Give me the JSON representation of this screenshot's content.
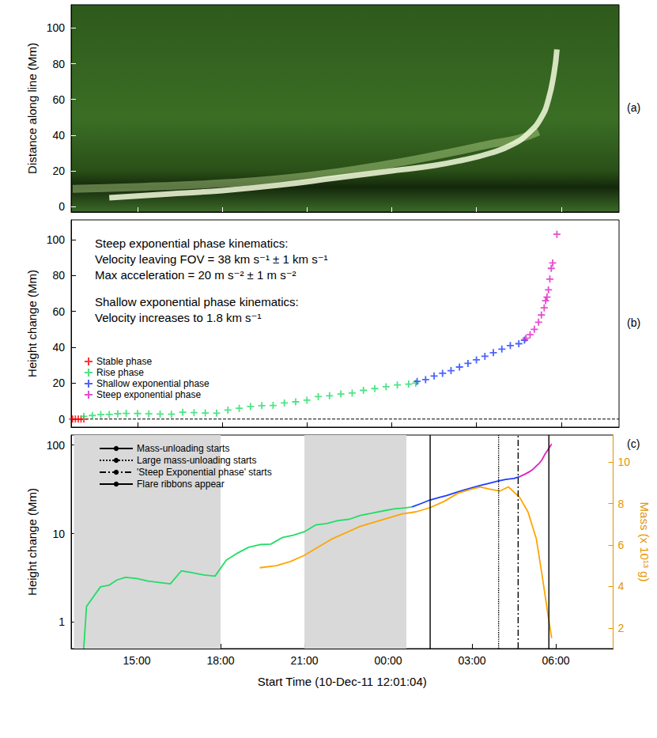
{
  "chart_data": [
    {
      "type": "line",
      "panel_label": "(a)",
      "ylabel": "Distance along line (Mm)",
      "tick_labels": "y",
      "xlim": [
        12.65,
        32.05
      ],
      "xticks": [
        {
          "value": 15,
          "label": "15:00"
        },
        {
          "value": 18,
          "label": "18:00"
        },
        {
          "value": 21,
          "label": "21:00"
        },
        {
          "value": 24,
          "label": "00:00"
        },
        {
          "value": 27,
          "label": "03:00"
        },
        {
          "value": 30,
          "label": "06:00"
        }
      ],
      "ylim": [
        -3,
        113
      ],
      "yticks": [
        0,
        20,
        40,
        60,
        80,
        100
      ],
      "series": [
        {
          "color": "#f2fadc",
          "x": [
            14.0,
            16.0,
            18.0,
            20.0,
            22.0,
            24.0,
            25.5,
            26.5,
            27.5,
            28.3,
            28.9,
            29.3,
            29.55,
            29.75,
            29.85
          ],
          "values": [
            5,
            7,
            9,
            12,
            16,
            20,
            23,
            26,
            30,
            35,
            42,
            50,
            60,
            75,
            88
          ]
        },
        {
          "color": "#b9d98c",
          "x": [
            12.7,
            15.0,
            18.0,
            21.0,
            24.0,
            26.0,
            27.5,
            28.5,
            29.2
          ],
          "values": [
            10,
            11,
            13,
            17,
            24,
            30,
            35,
            38,
            42
          ]
        }
      ]
    },
    {
      "type": "scatter",
      "panel_label": "(b)",
      "ylabel": "Height change (Mm)",
      "tick_labels": "y",
      "legend": "lower left",
      "xlim": [
        12.65,
        32.05
      ],
      "xticks": [
        {
          "value": 15,
          "label": "15:00"
        },
        {
          "value": 18,
          "label": "18:00"
        },
        {
          "value": 21,
          "label": "21:00"
        },
        {
          "value": 24,
          "label": "00:00"
        },
        {
          "value": 27,
          "label": "03:00"
        },
        {
          "value": 30,
          "label": "06:00"
        }
      ],
      "ylim": [
        -4.5,
        111
      ],
      "yticks": [
        0,
        20,
        40,
        60,
        80,
        100
      ],
      "reference_line": {
        "y": 0,
        "line_style": "dashed"
      },
      "annotations": [
        [
          "Steep exponential phase kinematics:",
          "Velocity leaving FOV = 38 km s⁻¹ ± 1 km s⁻¹",
          "Max acceleration = 20 m s⁻² ± 1 m s⁻²"
        ],
        [
          "Shallow exponential phase kinematics:",
          "Velocity increases to 1.8 km s⁻¹"
        ]
      ],
      "series": [
        {
          "name": "Stable phase",
          "color": "#ff0000",
          "marker": "plus",
          "x": [
            12.7,
            12.8,
            12.9,
            13.0,
            13.1
          ],
          "values": [
            0,
            0,
            0,
            0,
            0
          ]
        },
        {
          "name": "Rise phase",
          "color": "#22dd66",
          "marker": "plus",
          "x": [
            13.1,
            13.4,
            13.7,
            14.0,
            14.3,
            14.6,
            15.0,
            15.4,
            15.8,
            16.2,
            16.6,
            17.0,
            17.4,
            17.8,
            18.2,
            18.6,
            19.0,
            19.4,
            19.8,
            20.2,
            20.6,
            21.0,
            21.4,
            21.8,
            22.2,
            22.6,
            23.0,
            23.4,
            23.8,
            24.2,
            24.6,
            24.85
          ],
          "values": [
            1.5,
            2,
            2.5,
            2.6,
            3,
            3.2,
            3.1,
            2.9,
            2.8,
            2.7,
            3.8,
            3.6,
            3.4,
            3.3,
            5,
            6,
            7,
            7.5,
            7.6,
            9,
            9.6,
            10.5,
            12.5,
            13,
            14,
            14.5,
            16,
            17,
            18,
            19,
            19.5,
            20
          ]
        },
        {
          "name": "Shallow exponential phase",
          "color": "#1f3cff",
          "marker": "plus",
          "x": [
            24.9,
            25.2,
            25.5,
            25.8,
            26.1,
            26.4,
            26.7,
            27.0,
            27.3,
            27.6,
            27.9,
            28.2,
            28.5,
            28.7
          ],
          "values": [
            21,
            22,
            24,
            25.5,
            27,
            29,
            31,
            33,
            35,
            37,
            39,
            41,
            42,
            44
          ]
        },
        {
          "name": "Steep exponential phase",
          "color": "#e020c0",
          "marker": "plus",
          "x": [
            28.75,
            28.9,
            29.05,
            29.2,
            29.3,
            29.4,
            29.45,
            29.5,
            29.55,
            29.6,
            29.65,
            29.7,
            29.85
          ],
          "values": [
            45,
            47,
            50,
            54,
            58,
            62,
            66,
            68,
            72,
            78,
            84,
            87,
            103
          ]
        }
      ]
    },
    {
      "type": "line",
      "panel_label": "(c)",
      "log": "y",
      "legend": "upper left",
      "xlabel": "Start Time (10-Dec-11 12:01:04)",
      "ylabel": "Height change (Mm)",
      "y2label": "Mass (x 10¹³ g)",
      "xlim": [
        12.65,
        32.05
      ],
      "xticks": [
        {
          "value": 15,
          "label": "15:00"
        },
        {
          "value": 18,
          "label": "18:00"
        },
        {
          "value": 21,
          "label": "21:00"
        },
        {
          "value": 24,
          "label": "00:00"
        },
        {
          "value": 27,
          "label": "03:00"
        },
        {
          "value": 30,
          "label": "06:00"
        }
      ],
      "ylim": [
        0.5,
        130
      ],
      "yticks": [
        1,
        10,
        100
      ],
      "y2lim": [
        1,
        11.3
      ],
      "y2ticks": [
        2,
        4,
        6,
        8,
        10
      ],
      "shaded": [
        [
          12.75,
          18.0
        ],
        [
          21.0,
          24.65
        ]
      ],
      "series": [
        {
          "color": "#22dd66",
          "x": [
            13.1,
            13.2,
            13.7,
            14.0,
            14.3,
            14.6,
            15.0,
            15.4,
            15.8,
            16.2,
            16.6,
            17.0,
            17.4,
            17.8,
            18.2,
            18.6,
            19.0,
            19.4,
            19.8,
            20.2,
            20.6,
            21.0,
            21.4,
            21.8,
            22.2,
            22.6,
            23.0,
            23.4,
            23.8,
            24.2,
            24.6,
            24.85
          ],
          "values": [
            0.5,
            1.5,
            2.5,
            2.6,
            3,
            3.2,
            3.1,
            2.9,
            2.8,
            2.7,
            3.8,
            3.6,
            3.4,
            3.3,
            5,
            6,
            7,
            7.5,
            7.6,
            9,
            9.6,
            10.5,
            12.5,
            13,
            14,
            14.5,
            16,
            17,
            18,
            19,
            19.5,
            20
          ]
        },
        {
          "color": "#1f3cff",
          "x": [
            24.85,
            25.2,
            25.5,
            25.8,
            26.1,
            26.4,
            26.7,
            27.0,
            27.3,
            27.6,
            27.9,
            28.2,
            28.5,
            28.7
          ],
          "values": [
            20,
            22,
            24,
            25.5,
            27,
            29,
            31,
            33,
            35,
            37,
            39,
            41,
            42,
            44
          ]
        },
        {
          "color": "#e020c0",
          "x": [
            28.7,
            28.9,
            29.05,
            29.2,
            29.3,
            29.4,
            29.5,
            29.6,
            29.7,
            29.85
          ],
          "values": [
            44,
            47,
            50,
            54,
            58,
            62,
            68,
            78,
            87,
            103
          ]
        },
        {
          "color": "#ffa500",
          "axis": "y2",
          "x": [
            19.4,
            20.0,
            20.5,
            21.0,
            21.5,
            22.0,
            22.5,
            23.0,
            23.5,
            24.0,
            24.5,
            25.0,
            25.5,
            26.0,
            26.5,
            27.0,
            27.3,
            27.6,
            28.0,
            28.3,
            28.7,
            29.0,
            29.3,
            29.5,
            29.7,
            29.85
          ],
          "values": [
            4.9,
            5.0,
            5.2,
            5.5,
            5.9,
            6.3,
            6.6,
            6.9,
            7.1,
            7.3,
            7.5,
            7.6,
            7.8,
            8.1,
            8.5,
            8.7,
            8.8,
            8.7,
            8.6,
            8.8,
            8.3,
            7.6,
            6.3,
            4.6,
            2.8,
            1.5
          ]
        }
      ],
      "events": [
        {
          "name": "Mass-unloading starts",
          "x": 25.5,
          "line_style": "solid"
        },
        {
          "name": "Large mass-unloading starts",
          "x": 27.95,
          "line_style": "dotted"
        },
        {
          "name": "'Steep Exponential phase' starts",
          "x": 28.65,
          "line_style": "dashdot"
        },
        {
          "name": "Flare ribbons appear",
          "x": 29.75,
          "line_style": "solid"
        }
      ]
    }
  ]
}
